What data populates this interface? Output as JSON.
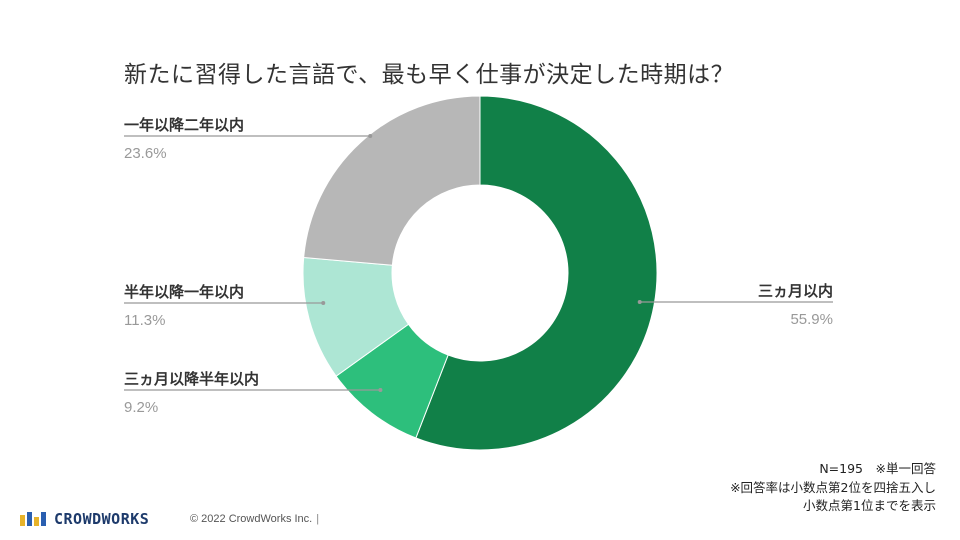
{
  "chart_data": {
    "type": "pie",
    "title": "新たに習得した言語で、最も早く仕事が決定した時期は？",
    "donut": true,
    "slices": [
      {
        "label": "三ヵ月以内",
        "value": 55.9,
        "value_label": "55.9%",
        "color": "#118048",
        "label_side": "right"
      },
      {
        "label": "三ヵ月以降半年以内",
        "value": 9.2,
        "value_label": "9.2%",
        "color": "#2dbf7c",
        "label_side": "left"
      },
      {
        "label": "半年以降一年以内",
        "value": 11.3,
        "value_label": "11.3%",
        "color": "#ade6d4",
        "label_side": "left"
      },
      {
        "label": "一年以降二年以内",
        "value": 23.6,
        "value_label": "23.6%",
        "color": "#b7b7b7",
        "label_side": "left"
      }
    ]
  },
  "notes": {
    "sample": "N=195　※単一回答",
    "rounding_line1": "※回答率は小数点第2位を四捨五入し",
    "rounding_line2": "小数点第1位までを表示"
  },
  "footer": {
    "brand": "CROWDWORKS",
    "copyright": "© 2022 CrowdWorks Inc.",
    "separator": "|"
  },
  "colors": {
    "label_text": "#333333",
    "value_text": "#999999",
    "leader_line": "#999999",
    "brand": "#1d3a6b"
  }
}
